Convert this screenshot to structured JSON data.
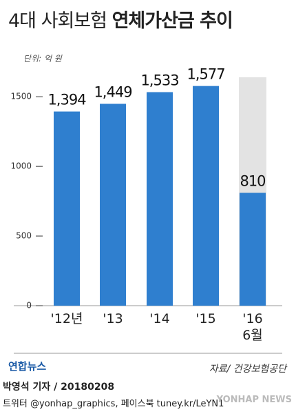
{
  "chart_data": {
    "type": "bar",
    "title": {
      "regular": "4대 사회보험",
      "bold": "연체가산금 추이"
    },
    "unit": "단위: 억 원",
    "categories": [
      "'12년",
      "'13",
      "'14",
      "'15",
      "'16\n6월"
    ],
    "values": [
      1394,
      1449,
      1533,
      1577,
      810
    ],
    "value_labels": [
      "1,394",
      "1,449",
      "1,533",
      "1,577",
      "810"
    ],
    "color": "#2f7fcf",
    "ylim": [
      0,
      1600
    ],
    "yticks": [
      0,
      500,
      1000,
      1500
    ],
    "source": "자료/ 건강보험공단",
    "logo": "연합뉴스",
    "byline": "박영석 기자 / 20180208",
    "social": "트위터 @yonhap_graphics, 페이스북 tuney.kr/LeYN1",
    "watermark": "YONHAP NEWS"
  }
}
